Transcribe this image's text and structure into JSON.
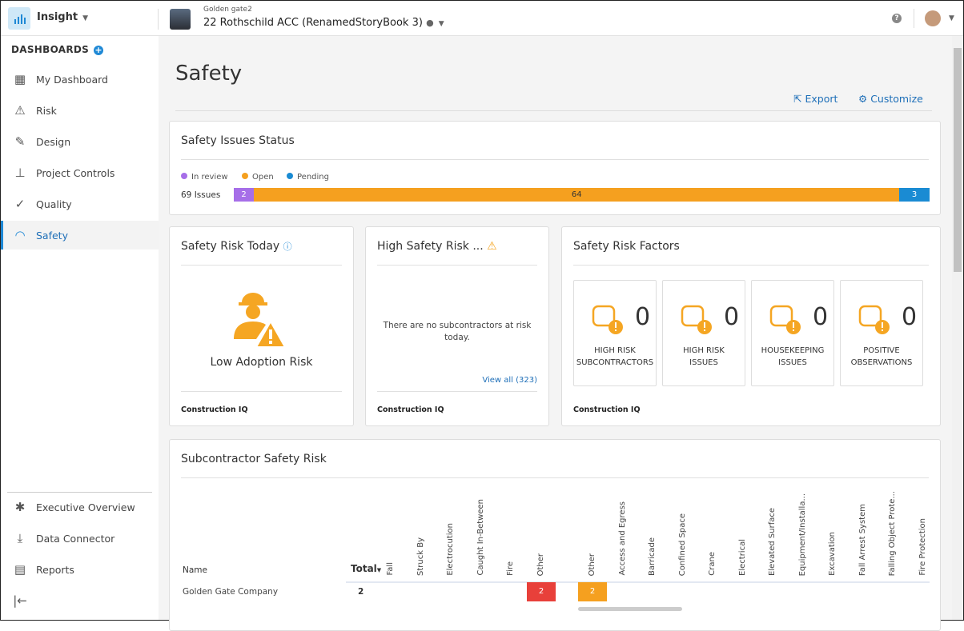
{
  "topbar": {
    "app": "Insight",
    "project_sub": "Golden gate2",
    "project": "22 Rothschild ACC (RenamedStoryBook 3)"
  },
  "sidebar": {
    "heading": "DASHBOARDS",
    "items": [
      {
        "label": "My Dashboard",
        "icon": "grid-icon"
      },
      {
        "label": "Risk",
        "icon": "warning-icon"
      },
      {
        "label": "Design",
        "icon": "edit-icon"
      },
      {
        "label": "Project Controls",
        "icon": "hierarchy-icon"
      },
      {
        "label": "Quality",
        "icon": "check-icon"
      },
      {
        "label": "Safety",
        "icon": "hardhat-icon",
        "active": true
      }
    ],
    "bottom": [
      {
        "label": "Executive Overview",
        "icon": "network-icon"
      },
      {
        "label": "Data Connector",
        "icon": "download-icon"
      },
      {
        "label": "Reports",
        "icon": "report-icon"
      }
    ]
  },
  "page": {
    "title": "Safety",
    "export": "Export",
    "customize": "Customize"
  },
  "status": {
    "title": "Safety Issues Status",
    "legend": [
      {
        "label": "In review",
        "color": "#a66ee8"
      },
      {
        "label": "Open",
        "color": "#f5a01f"
      },
      {
        "label": "Pending",
        "color": "#1a8bd3"
      }
    ],
    "count": "69 Issues",
    "segments": [
      {
        "value": 2,
        "color": "#a66ee8"
      },
      {
        "value": 64,
        "color": "#f5a01f"
      },
      {
        "value": 3,
        "color": "#1a8bd3"
      }
    ]
  },
  "risk_today": {
    "title": "Safety Risk Today",
    "level": "Low Adoption Risk",
    "footer": "Construction IQ"
  },
  "high_risk": {
    "title": "High Safety Risk ...",
    "message": "There are no subcontractors at risk today.",
    "view_all": "View all (323)",
    "footer": "Construction IQ"
  },
  "factors": {
    "title": "Safety Risk Factors",
    "footer": "Construction IQ",
    "items": [
      {
        "label1": "HIGH RISK",
        "label2": "SUBCONTRACTORS",
        "value": "0"
      },
      {
        "label1": "HIGH RISK",
        "label2": "ISSUES",
        "value": "0"
      },
      {
        "label1": "HOUSEKEEPING",
        "label2": "ISSUES",
        "value": "0"
      },
      {
        "label1": "POSITIVE",
        "label2": "OBSERVATIONS",
        "value": "0"
      }
    ]
  },
  "subcontractor": {
    "title": "Subcontractor Safety Risk",
    "name_col": "Name",
    "total_col": "Total",
    "group1": [
      "Fall",
      "Struck By",
      "Electrocution",
      "Caught In-Between",
      "Fire",
      "Other"
    ],
    "group2": [
      "Other",
      "Access and Egress",
      "Barricade",
      "Confined Space",
      "Crane",
      "Electrical",
      "Elevated Surface",
      "Equipment/Installa...",
      "Excavation",
      "Fall Arrest System",
      "Falling Object Prote...",
      "Fire Protection"
    ],
    "rows": [
      {
        "name": "Golden Gate Company",
        "total": "2",
        "group1_other": "2",
        "group2_other": "2"
      }
    ]
  }
}
